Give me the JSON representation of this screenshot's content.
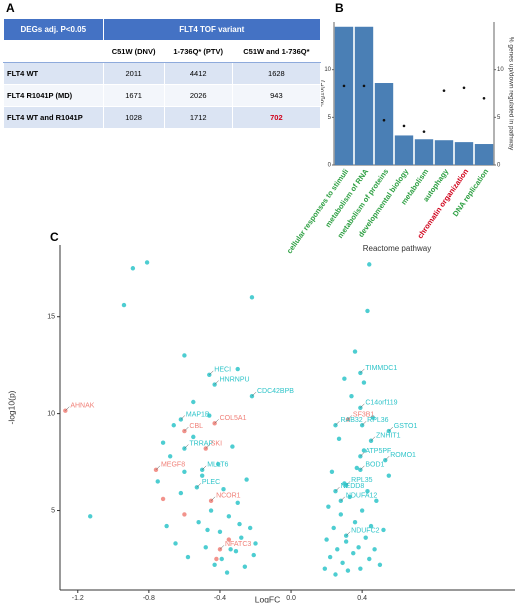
{
  "panel_labels": [
    "A",
    "B",
    "C"
  ],
  "table": {
    "header": [
      "DEGs adj. P<0.05",
      "FLT4 TOF variant"
    ],
    "columns": [
      "C51W (DNV)",
      "1-736Q* (PTV)",
      "C51W and 1-736Q*"
    ],
    "rows": [
      [
        "FLT4 WT",
        2011,
        4412,
        1628
      ],
      [
        "FLT4 R1041P (MD)",
        1671,
        2026,
        943
      ],
      [
        "FLT4 WT and R1041P",
        1028,
        1712,
        702
      ]
    ],
    "emphasis": {
      "row": 2,
      "col": 3,
      "color": "#d0021b"
    }
  },
  "chart_data": [
    {
      "type": "bar",
      "ylabel": "-log10(P)",
      "y2label": "% genes up/down regulated in pathway",
      "xlabel": "Reactome pathway",
      "categories": [
        "cellular responses to stimuli",
        "metabolism of RNA",
        "metabolism of proteins",
        "developmental biology",
        "metabolism",
        "autophagy",
        "chromatin organization",
        "DNA replication"
      ],
      "category_colors": [
        "#2ea043",
        "#2ea043",
        "#2ea043",
        "#2ea043",
        "#2ea043",
        "#2ea043",
        "#d0021b",
        "#2ea043"
      ],
      "series": [
        {
          "values": [
            14.5,
            14.5,
            8.6,
            3.1,
            2.7,
            2.6,
            2.4,
            2.2
          ],
          "color": "#4a7fb5"
        },
        {
          "type": "scatter",
          "axis": "y2",
          "values": [
            8.3,
            8.3,
            4.7,
            4.1,
            3.5,
            7.8,
            8.1,
            7.0
          ],
          "color": "#111111"
        }
      ],
      "ylim": [
        0,
        15
      ],
      "yticks": [
        0,
        5,
        10
      ],
      "y2lim": [
        0,
        15
      ],
      "y2ticks": [
        0,
        5,
        10
      ]
    },
    {
      "type": "scatter",
      "xlabel": "LogFC",
      "ylabel": "-log10(p)",
      "xlim": [
        -1.3,
        1.26
      ],
      "ylim": [
        0.9,
        18.7
      ],
      "xticks": [
        -1.2,
        -0.8,
        -0.4,
        {
          "value": 0,
          "label": "0.0"
        },
        0.4
      ],
      "yticks": [
        5,
        10,
        15
      ],
      "series": [
        {
          "color": "#2ec4c9",
          "x": [
            -0.46,
            -0.43,
            -0.22,
            -0.62,
            -0.6,
            -0.5,
            -0.53,
            0.39,
            0.39,
            0.4,
            0.55,
            0.25,
            0.45,
            0.39,
            0.53,
            0.39,
            0.31,
            0.25,
            0.28,
            0.31,
            -0.89,
            -0.81,
            -0.94,
            -0.22,
            0.44,
            0.43,
            -1.13,
            -0.6,
            -0.3,
            0.41,
            -0.75,
            -0.7,
            -0.68,
            -0.65,
            -0.62,
            -0.58,
            -0.55,
            -0.52,
            -0.5,
            -0.48,
            -0.46,
            -0.45,
            -0.43,
            -0.41,
            -0.4,
            -0.38,
            -0.36,
            -0.35,
            -0.33,
            -0.31,
            -0.3,
            -0.28,
            -0.26,
            -0.25,
            -0.23,
            -0.21,
            -0.2,
            -0.55,
            -0.66,
            -0.72,
            -0.6,
            -0.47,
            -0.39,
            -0.34,
            -0.29,
            0.19,
            0.2,
            0.21,
            0.22,
            0.23,
            0.24,
            0.25,
            0.26,
            0.27,
            0.28,
            0.29,
            0.3,
            0.31,
            0.32,
            0.33,
            0.34,
            0.35,
            0.36,
            0.37,
            0.38,
            0.39,
            0.4,
            0.41,
            0.42,
            0.43,
            0.44,
            0.45,
            0.46,
            0.47,
            0.48,
            0.5,
            0.52,
            0.55,
            0.36,
            0.3
          ],
          "y": [
            12.0,
            11.5,
            10.9,
            9.7,
            8.2,
            7.1,
            6.2,
            12.1,
            10.3,
            9.4,
            9.1,
            9.4,
            8.6,
            7.8,
            7.6,
            7.1,
            6.3,
            6.0,
            5.5,
            3.7,
            17.5,
            17.8,
            15.6,
            16.0,
            17.7,
            15.3,
            4.7,
            13.0,
            12.3,
            11.6,
            6.5,
            4.2,
            7.8,
            3.3,
            5.9,
            2.6,
            8.8,
            4.4,
            6.8,
            3.1,
            9.9,
            5.0,
            2.2,
            7.4,
            3.9,
            6.1,
            1.8,
            4.7,
            8.3,
            2.9,
            5.4,
            3.6,
            2.1,
            6.6,
            4.1,
            2.7,
            3.3,
            10.6,
            9.4,
            8.5,
            7.0,
            4.0,
            2.5,
            3.0,
            4.3,
            2.0,
            3.5,
            5.2,
            2.6,
            7.0,
            4.1,
            1.7,
            3.0,
            8.7,
            4.8,
            2.3,
            6.4,
            3.4,
            1.9,
            5.7,
            10.9,
            2.8,
            4.4,
            7.2,
            3.1,
            2.0,
            5.0,
            8.1,
            3.6,
            6.0,
            2.5,
            4.2,
            9.8,
            3.0,
            5.5,
            2.2,
            4.0,
            6.8,
            13.2,
            11.8
          ],
          "labels": [
            "HECI",
            "HNRNPU",
            "CDC42BPB",
            "MAP1B",
            "TRRAP",
            "MLLT6",
            "PLEC",
            "TIMMDC1",
            "C14orf119",
            "RPL36",
            "GSTO1",
            "RAB32",
            "ZNHIT1",
            "ATP5PF",
            "ROMO1",
            "BOD1",
            "RPL35",
            "NEDD8",
            "NDUFA12",
            "NDUFC2",
            null,
            null,
            null,
            null,
            null,
            null,
            null,
            null,
            null,
            null,
            null,
            null,
            null,
            null,
            null,
            null,
            null,
            null,
            null,
            null,
            null,
            null,
            null,
            null,
            null,
            null,
            null,
            null,
            null,
            null,
            null,
            null,
            null,
            null,
            null,
            null,
            null,
            null,
            null,
            null,
            null,
            null,
            null,
            null,
            null,
            null,
            null,
            null,
            null,
            null,
            null,
            null,
            null,
            null,
            null,
            null,
            null,
            null,
            null,
            null,
            null,
            null,
            null,
            null,
            null,
            null,
            null,
            null,
            null,
            null,
            null,
            null,
            null,
            null,
            null,
            null,
            null,
            null,
            null,
            null
          ]
        },
        {
          "color": "#f08078",
          "x": [
            -1.27,
            -0.6,
            -0.43,
            -0.48,
            -0.76,
            -0.45,
            -0.4,
            0.32,
            -0.72,
            -0.6,
            -0.35,
            -0.42
          ],
          "y": [
            10.15,
            9.1,
            9.5,
            8.2,
            7.1,
            5.5,
            3.0,
            9.7,
            5.6,
            4.8,
            3.5,
            2.5
          ],
          "labels": [
            "AHNAK",
            "CBL",
            "COL5A1",
            "SKI",
            "MEGF8",
            "NCOR1",
            "NFATC3",
            "SF3B1",
            null,
            null,
            null,
            null
          ]
        }
      ]
    }
  ]
}
